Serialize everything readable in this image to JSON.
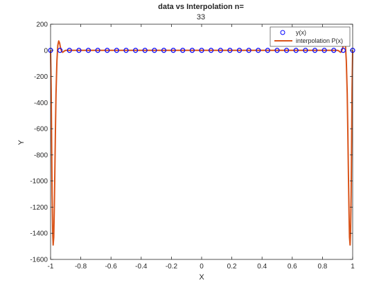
{
  "chart_data": {
    "type": "line",
    "title": "data vs Interpolation n=",
    "subtitle": "33",
    "xlabel": "X",
    "ylabel": "Y",
    "xlim": [
      -1,
      1
    ],
    "ylim": [
      -1600,
      200
    ],
    "xticks": [
      -1,
      -0.8,
      -0.6,
      -0.4,
      -0.2,
      0,
      0.2,
      0.4,
      0.6,
      0.8,
      1
    ],
    "xtick_labels": [
      "-1",
      "-0.8",
      "-0.6",
      "-0.4",
      "-0.2",
      "0",
      "0.2",
      "0.4",
      "0.6",
      "0.8",
      "1"
    ],
    "yticks": [
      200,
      0,
      -200,
      -400,
      -600,
      -800,
      -1000,
      -1200,
      -1400,
      -1600
    ],
    "ytick_labels": [
      "200",
      "0",
      "-200",
      "-400",
      "-600",
      "-800",
      "-1000",
      "-1200",
      "-1400",
      "-1600"
    ],
    "grid": false,
    "legend_position": "top-right",
    "colors": {
      "data": "#0000ff",
      "interpolation": "#d95319",
      "axes": "#262626"
    },
    "series": [
      {
        "name": "y(x)",
        "kind": "markers",
        "marker": "circle",
        "x_range": [
          -1,
          1
        ],
        "count": 33,
        "y_value": 0
      },
      {
        "name": "interpolation P(x)",
        "kind": "line",
        "x": [
          -1.0,
          -0.996,
          -0.993,
          -0.99,
          -0.986,
          -0.983,
          -0.979,
          -0.976,
          -0.972,
          -0.968,
          -0.964,
          -0.958,
          -0.952,
          -0.946,
          -0.94,
          -0.936,
          -0.932,
          -0.926,
          -0.92,
          -0.914,
          -0.908,
          -0.9,
          -0.88,
          -0.8,
          -0.6,
          -0.4,
          -0.2,
          0,
          0.2,
          0.4,
          0.6,
          0.8,
          0.88,
          0.9,
          0.908,
          0.914,
          0.92,
          0.926,
          0.932,
          0.936,
          0.94,
          0.946,
          0.952,
          0.958,
          0.964,
          0.968,
          0.972,
          0.976,
          0.979,
          0.983,
          0.986,
          0.99,
          0.993,
          0.996,
          1.0
        ],
        "y": [
          0,
          -300,
          -700,
          -1100,
          -1400,
          -1490,
          -1430,
          -1250,
          -950,
          -620,
          -330,
          -80,
          40,
          72,
          55,
          30,
          10,
          -8,
          -15,
          -10,
          -4,
          0,
          0,
          0,
          0,
          0,
          0,
          0,
          0,
          0,
          0,
          0,
          0,
          0,
          -4,
          -10,
          -15,
          -8,
          10,
          30,
          55,
          72,
          40,
          -80,
          -330,
          -620,
          -950,
          -1250,
          -1430,
          -1490,
          -1400,
          -1100,
          -700,
          -300,
          0
        ]
      }
    ]
  }
}
